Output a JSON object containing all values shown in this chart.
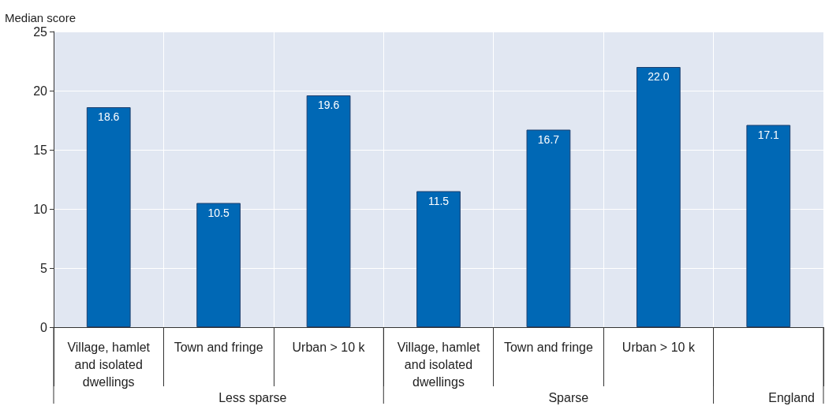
{
  "chart_data": {
    "type": "bar",
    "ylabel": "Median score",
    "categories": [
      "Village, hamlet\nand isolated\ndwellings",
      "Town and fringe",
      "Urban > 10 k",
      "Village, hamlet\nand isolated\ndwellings",
      "Town and fringe",
      "Urban > 10 k",
      null
    ],
    "values": [
      18.6,
      10.5,
      19.6,
      11.5,
      16.7,
      22.0,
      17.1
    ],
    "value_labels": [
      "18.6",
      "10.5",
      "19.6",
      "11.5",
      "16.7",
      "22.0",
      "17.1"
    ],
    "color": "#0068b5",
    "ylim": [
      0,
      25
    ],
    "yticks": [
      0,
      5,
      10,
      15,
      20,
      25
    ],
    "grid": true,
    "annotations": [
      "Less sparse",
      "Sparse",
      "England"
    ]
  }
}
